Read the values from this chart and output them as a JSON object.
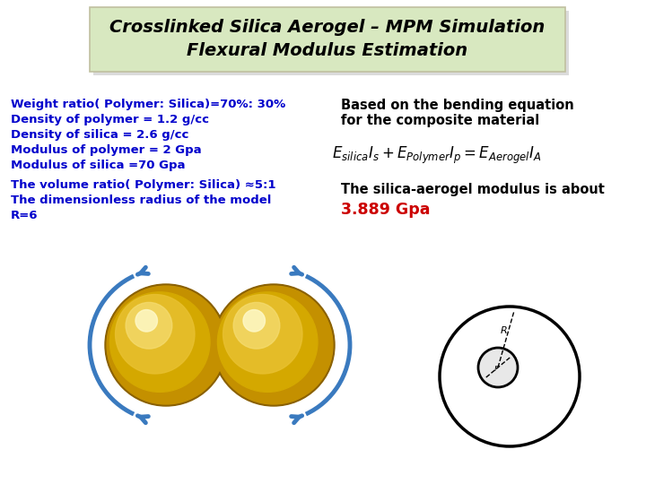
{
  "title_line1": "Crosslinked Silica Aerogel – MPM Simulation",
  "title_line2": "Flexural Modulus Estimation",
  "title_bg_color": "#d8e8c0",
  "title_fontsize": 14,
  "left_text_color": "#0000cc",
  "left_text1": "Weight ratio( Polymer: Silica)=70%: 30%",
  "left_text2": "Density of polymer = 1.2 g/cc",
  "left_text3": "Density of silica = 2.6 g/cc",
  "left_text4": "Modulus of polymer = 2 Gpa",
  "left_text5": "Modulus of silica =70 Gpa",
  "left_text6": "The volume ratio( Polymer: Silica) ≈5:1",
  "left_text7": "The dimensionless radius of the model",
  "left_text8": "R=6",
  "right_text1": "Based on the bending equation",
  "right_text2": "for the composite material",
  "result_text1": "The silica-aerogel modulus is about",
  "result_value": "3.889 Gpa",
  "result_color": "#cc0000",
  "bg_color": "#ffffff",
  "font_size_body": 9.5,
  "arrow_color": "#3a7abf",
  "sphere_color_outer": "#b8880a",
  "sphere_color_mid": "#d4a017",
  "sphere_color_inner": "#e8c040",
  "sphere_color_highlight": "#f8e880"
}
